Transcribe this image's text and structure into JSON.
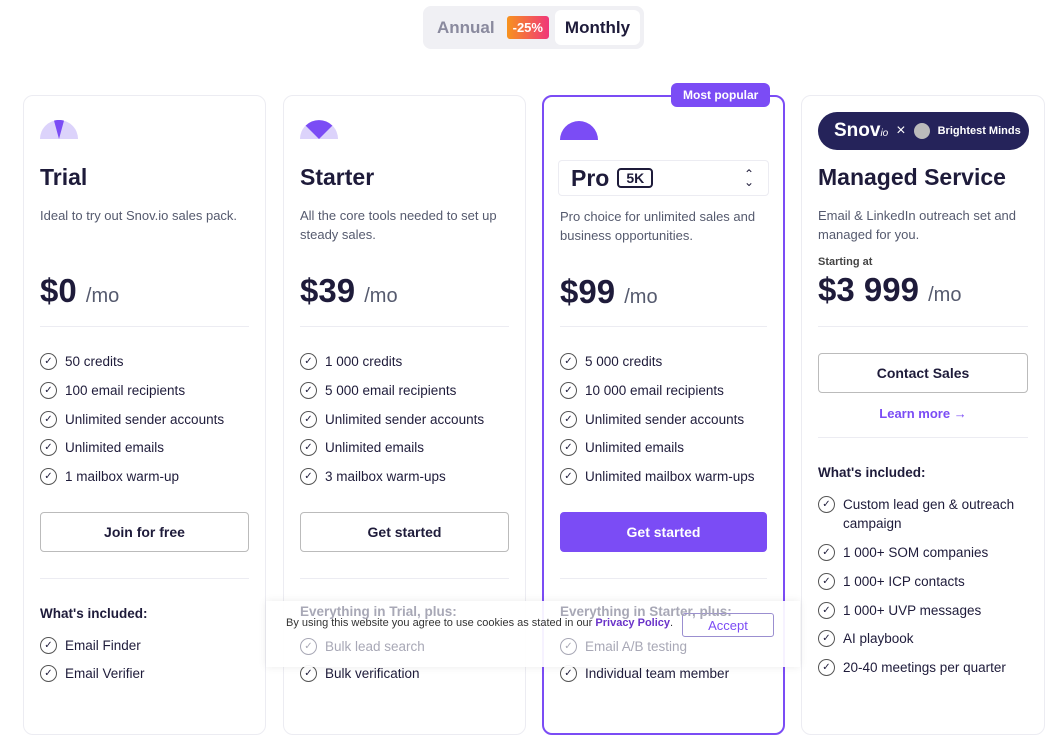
{
  "toggle": {
    "annual": "Annual",
    "discount": "-25%",
    "monthly": "Monthly"
  },
  "accent": "#7b4cf5",
  "plans": [
    {
      "title": "Trial",
      "desc": "Ideal to try out Snov.io sales pack.",
      "price": "$0",
      "per": "/mo",
      "features": [
        "50 credits",
        "100 email recipients",
        "Unlimited sender accounts",
        "Unlimited emails",
        "1 mailbox warm-up"
      ],
      "button": "Join for free",
      "included_title": "What's included:",
      "included": [
        "Email Finder",
        "Email Verifier"
      ]
    },
    {
      "title": "Starter",
      "desc": "All the core tools needed to set up steady sales.",
      "price": "$39",
      "per": "/mo",
      "features": [
        "1 000 credits",
        "5 000 email recipients",
        "Unlimited sender accounts",
        "Unlimited emails",
        "3 mailbox warm-ups"
      ],
      "button": "Get started",
      "included_title": "Everything in Trial, plus:",
      "included": [
        "Bulk lead search",
        "Bulk verification"
      ]
    },
    {
      "badge": "Most popular",
      "title": "Pro",
      "tier": "5K",
      "desc": "Pro choice for unlimited sales and business opportunities.",
      "price": "$99",
      "per": "/mo",
      "features": [
        "5 000 credits",
        "10 000 email recipients",
        "Unlimited sender accounts",
        "Unlimited emails",
        "Unlimited mailbox warm-ups"
      ],
      "button": "Get started",
      "included_title": "Everything in Starter, plus:",
      "included": [
        "Email A/B testing",
        "Individual team member"
      ]
    },
    {
      "logo": {
        "left": "Snov",
        "left_suffix": "io",
        "x": "×",
        "right": "Brightest Minds"
      },
      "title": "Managed Service",
      "desc": "Email & LinkedIn outreach set and managed for you.",
      "starting": "Starting at",
      "price": "$3 999",
      "per": "/mo",
      "button": "Contact Sales",
      "learn": "Learn more →",
      "included_title": "What's included:",
      "included": [
        "Custom lead gen & outreach campaign",
        "1 000+ SOM companies",
        "1 000+ ICP contacts",
        "1 000+ UVP messages",
        "AI playbook",
        "20-40 meetings per quarter"
      ]
    }
  ],
  "cookie": {
    "text": "By using this website you agree to use cookies as stated in our ",
    "link": "Privacy Policy",
    "end": ".",
    "accept": "Accept"
  }
}
